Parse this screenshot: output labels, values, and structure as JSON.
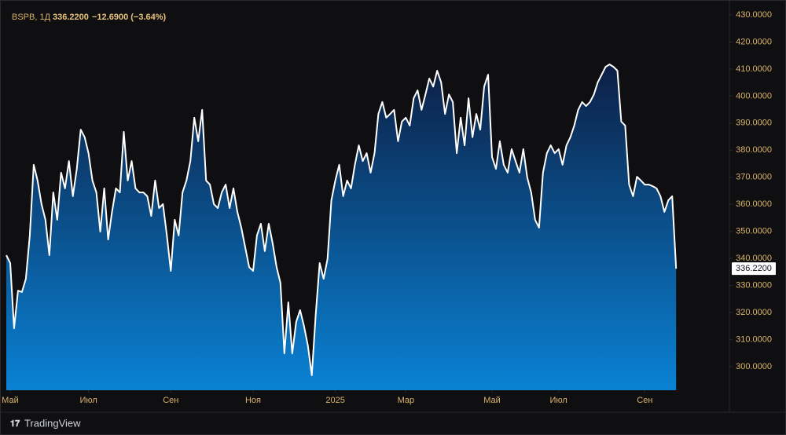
{
  "chart_data": {
    "type": "area",
    "header": {
      "symbol": "BSPB, 1Д",
      "price": "336.2200",
      "change": "−12.6900 (−3.64%)"
    },
    "last_label": "336.2200",
    "line_color": "#ffffff",
    "fill_colors": [
      "#0c1f45",
      "#0a82d4"
    ],
    "values": [
      341.2,
      338.3,
      314.2,
      328.1,
      327.6,
      332.5,
      348.5,
      374.6,
      368.8,
      360.1,
      354.3,
      341.2,
      364.4,
      354.3,
      371.7,
      365.9,
      376.0,
      363.0,
      373.1,
      387.6,
      384.8,
      378.9,
      368.8,
      364.4,
      349.9,
      365.9,
      347.0,
      357.2,
      365.9,
      364.4,
      386.8,
      368.8,
      376.0,
      365.9,
      364.4,
      364.4,
      363.0,
      355.7,
      368.8,
      358.6,
      360.1,
      348.5,
      335.4,
      354.3,
      348.5,
      364.4,
      368.8,
      376.0,
      392.0,
      383.3,
      394.9,
      368.8,
      367.3,
      360.1,
      358.6,
      364.4,
      367.3,
      358.6,
      365.9,
      357.2,
      351.4,
      344.1,
      336.8,
      335.4,
      348.5,
      352.8,
      342.7,
      352.8,
      345.6,
      336.8,
      331.0,
      304.9,
      323.8,
      304.9,
      316.5,
      320.9,
      315.1,
      307.8,
      296.8,
      319.4,
      338.3,
      332.5,
      339.8,
      361.5,
      368.8,
      374.6,
      363.0,
      368.8,
      365.9,
      374.6,
      381.8,
      376.0,
      378.9,
      371.7,
      378.9,
      393.4,
      397.8,
      392.0,
      393.4,
      394.9,
      383.3,
      390.6,
      392.0,
      389.1,
      399.2,
      402.1,
      394.9,
      400.6,
      406.5,
      403.5,
      409.4,
      405.1,
      393.4,
      400.6,
      397.8,
      378.9,
      392.0,
      381.8,
      399.2,
      384.8,
      393.4,
      387.6,
      403.5,
      407.9,
      377.5,
      373.1,
      383.3,
      374.6,
      371.7,
      380.4,
      376.0,
      371.7,
      380.4,
      369.9,
      364.4,
      354.3,
      351.4,
      371.7,
      378.9,
      381.8,
      378.9,
      380.4,
      374.6,
      381.8,
      384.8,
      389.1,
      394.9,
      397.8,
      396.3,
      397.8,
      400.6,
      405.1,
      407.9,
      410.8,
      411.7,
      410.8,
      409.4,
      390.6,
      389.1,
      367.3,
      363.0,
      370.2,
      368.8,
      367.3,
      367.3,
      366.7,
      365.9,
      363.0,
      357.2,
      361.5,
      363.0,
      336.22
    ],
    "xlim": [
      -1.6,
      184.6
    ],
    "xticks": [
      {
        "value": 1,
        "label": "Май"
      },
      {
        "value": 21,
        "label": "Июл"
      },
      {
        "value": 42,
        "label": "Сен"
      },
      {
        "value": 63,
        "label": "Ноя"
      },
      {
        "value": 84,
        "label": "2025"
      },
      {
        "value": 102,
        "label": "Мар"
      },
      {
        "value": 124,
        "label": "Май"
      },
      {
        "value": 141,
        "label": "Июл"
      },
      {
        "value": 163,
        "label": "Сен"
      }
    ],
    "ylim": [
      291.3,
      432.6
    ],
    "yticks": [
      {
        "value": 300,
        "label": "300.0000"
      },
      {
        "value": 310,
        "label": "310.0000"
      },
      {
        "value": 320,
        "label": "320.0000"
      },
      {
        "value": 330,
        "label": "330.0000"
      },
      {
        "value": 340,
        "label": "340.0000"
      },
      {
        "value": 350,
        "label": "350.0000"
      },
      {
        "value": 360,
        "label": "360.0000"
      },
      {
        "value": 370,
        "label": "370.0000"
      },
      {
        "value": 380,
        "label": "380.0000"
      },
      {
        "value": 390,
        "label": "390.0000"
      },
      {
        "value": 400,
        "label": "400.0000"
      },
      {
        "value": 410,
        "label": "410.0000"
      },
      {
        "value": 420,
        "label": "420.0000"
      },
      {
        "value": 430,
        "label": "430.0000"
      }
    ],
    "grid": false
  },
  "brand": "TradingView"
}
